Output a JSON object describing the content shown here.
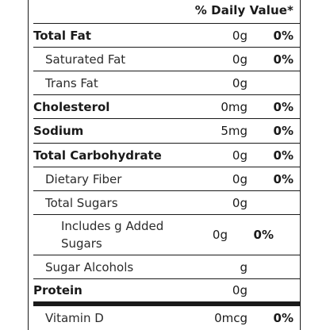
{
  "header": {
    "daily_value_label": "% Daily Value*"
  },
  "rows": [
    {
      "name": "Total Fat",
      "amount": "0g",
      "dv": "0%"
    },
    {
      "name": "Saturated Fat",
      "amount": "0g",
      "dv": "0%"
    },
    {
      "name": "Trans Fat",
      "amount": "0g",
      "dv": ""
    },
    {
      "name": "Cholesterol",
      "amount": "0mg",
      "dv": "0%"
    },
    {
      "name": "Sodium",
      "amount": "5mg",
      "dv": "0%"
    },
    {
      "name": "Total Carbohydrate",
      "amount": "0g",
      "dv": "0%"
    },
    {
      "name": "Dietary Fiber",
      "amount": "0g",
      "dv": "0%"
    },
    {
      "name": "Total Sugars",
      "amount": "0g",
      "dv": ""
    },
    {
      "name": "Includes g Added Sugars",
      "amount": "0g",
      "dv": "0%"
    },
    {
      "name": "Sugar Alcohols",
      "amount": "g",
      "dv": ""
    },
    {
      "name": "Protein",
      "amount": "0g",
      "dv": ""
    },
    {
      "name": "Vitamin D",
      "amount": "0mcg",
      "dv": "0%"
    }
  ]
}
